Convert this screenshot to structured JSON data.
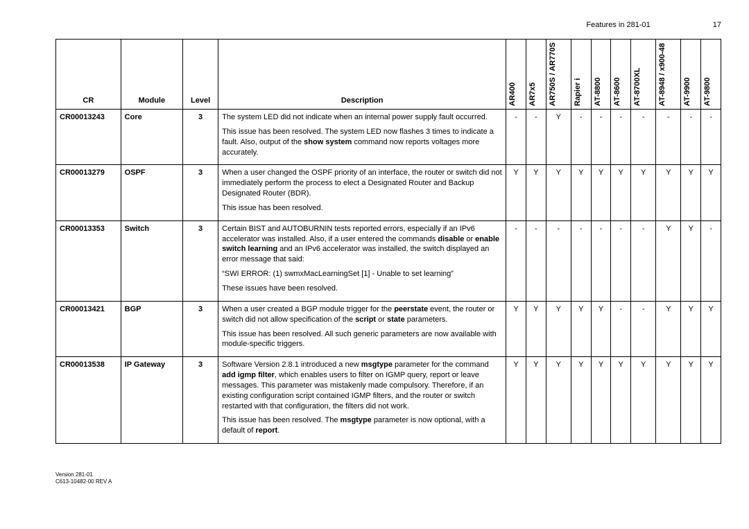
{
  "header": {
    "section": "Features in 281-01",
    "page": "17"
  },
  "columns": {
    "cr": "CR",
    "module": "Module",
    "level": "Level",
    "description": "Description",
    "flags": [
      "AR400",
      "AR7x5",
      "AR750S / AR770S",
      "Rapier i",
      "AT-8800",
      "AT-8600",
      "AT-8700XL",
      "AT-8948 / x900-48",
      "AT-9900",
      "AT-9800"
    ]
  },
  "rows": [
    {
      "cr": "CR00013243",
      "module": "Core",
      "level": "3",
      "desc_html": "The system LED did not indicate when an internal power supply fault occurred.<p>This issue has been resolved. The system LED now flashes 3 times to indicate a fault. Also, output of the <span class=\"b\">show system</span> command now reports voltages more accurately.</p>",
      "flags": [
        "-",
        "-",
        "Y",
        "-",
        "-",
        "-",
        "-",
        "-",
        "-",
        "-"
      ]
    },
    {
      "cr": "CR00013279",
      "module": "OSPF",
      "level": "3",
      "desc_html": "When a user changed the OSPF priority of an interface, the router or switch did not immediately perform the process to elect a Designated Router and Backup Designated Router (BDR).<p>This issue has been resolved.</p>",
      "flags": [
        "Y",
        "Y",
        "Y",
        "Y",
        "Y",
        "Y",
        "Y",
        "Y",
        "Y",
        "Y"
      ]
    },
    {
      "cr": "CR00013353",
      "module": "Switch",
      "level": "3",
      "desc_html": "Certain BIST and AUTOBURNIN tests reported errors, especially if an IPv6 accelerator was installed. Also, if a user entered the commands <span class=\"b\">disable</span> or <span class=\"b\">enable switch learning</span> and an IPv6 accelerator was installed, the switch displayed an error message that said:<p>“SWI ERROR: (1) swmxMacLearningSet [1] - Unable to set learning”</p><p>These issues have been resolved.</p>",
      "flags": [
        "-",
        "-",
        "-",
        "-",
        "-",
        "-",
        "-",
        "Y",
        "Y",
        "-"
      ]
    },
    {
      "cr": "CR00013421",
      "module": "BGP",
      "level": "3",
      "desc_html": "When a user created a BGP module trigger for the <span class=\"b\">peerstate</span> event, the router or switch did not allow specification of the <span class=\"b\">script</span> or <span class=\"b\">state</span> parameters.<p>This issue has been resolved. All such generic parameters are now available with module-specific triggers.</p>",
      "flags": [
        "Y",
        "Y",
        "Y",
        "Y",
        "Y",
        "-",
        "-",
        "Y",
        "Y",
        "Y"
      ]
    },
    {
      "cr": "CR00013538",
      "module": "IP Gateway",
      "level": "3",
      "desc_html": "Software Version 2.8.1 introduced a new <span class=\"b\">msgtype</span> parameter for the command <span class=\"b\">add igmp filter</span>, which enables users to filter on IGMP query, report or leave messages. This parameter was mistakenly made compulsory. Therefore, if an existing configuration script contained IGMP filters, and the router or switch restarted with that configuration, the filters did not work.<p>This issue has been resolved. The <span class=\"b\">msgtype</span> parameter is now optional, with a default of <span class=\"b\">report</span>.</p>",
      "flags": [
        "Y",
        "Y",
        "Y",
        "Y",
        "Y",
        "Y",
        "Y",
        "Y",
        "Y",
        "Y"
      ]
    }
  ],
  "footer": {
    "line1": "Version 281-01",
    "line2": "C613-10482-00 REV A"
  }
}
